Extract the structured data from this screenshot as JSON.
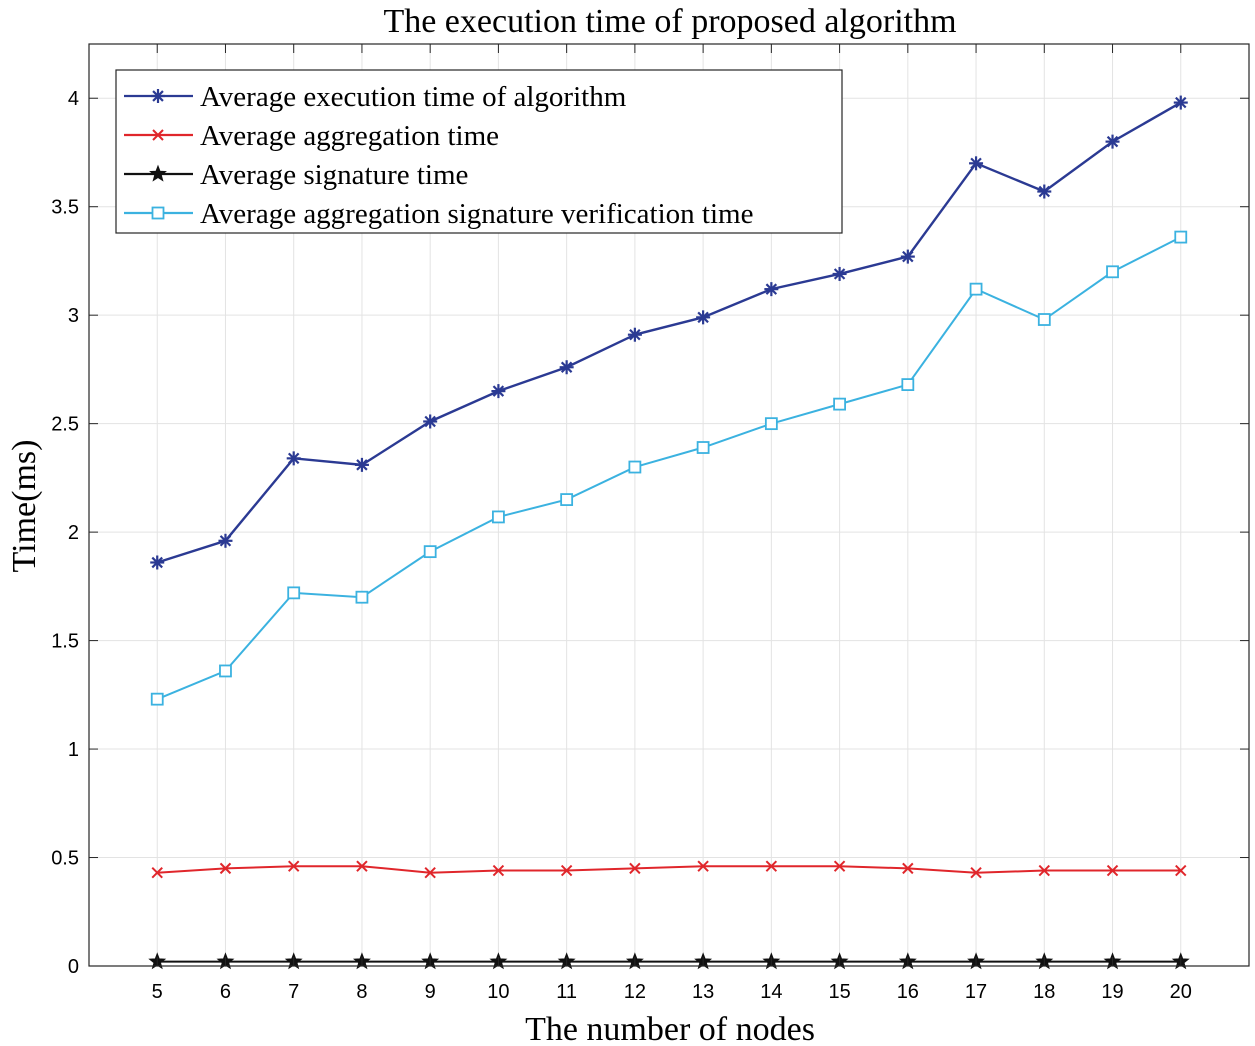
{
  "chart_data": {
    "type": "line",
    "title": "The execution time of proposed algorithm",
    "xlabel": "The number of nodes",
    "ylabel": "Time(ms)",
    "x": [
      5,
      6,
      7,
      8,
      9,
      10,
      11,
      12,
      13,
      14,
      15,
      16,
      17,
      18,
      19,
      20
    ],
    "xlim": [
      4,
      21
    ],
    "ylim": [
      0,
      4.25
    ],
    "yticks": [
      0,
      0.5,
      1,
      1.5,
      2,
      2.5,
      3,
      3.5,
      4
    ],
    "ytick_labels": [
      "0",
      "0.5",
      "1",
      "1.5",
      "2",
      "2.5",
      "3",
      "3.5",
      "4"
    ],
    "xtick_labels": [
      "5",
      "6",
      "7",
      "8",
      "9",
      "10",
      "11",
      "12",
      "13",
      "14",
      "15",
      "16",
      "17",
      "18",
      "19",
      "20"
    ],
    "grid": true,
    "legend_position": "top-left",
    "series": [
      {
        "name": "Average execution time of algorithm",
        "color": "#2b3a93",
        "marker": "asterisk",
        "values": [
          1.86,
          1.96,
          2.34,
          2.31,
          2.51,
          2.65,
          2.76,
          2.91,
          2.99,
          3.12,
          3.19,
          3.27,
          3.7,
          3.57,
          3.8,
          3.98
        ]
      },
      {
        "name": "Average aggregation time",
        "color": "#e0262b",
        "marker": "x",
        "values": [
          0.43,
          0.45,
          0.46,
          0.46,
          0.43,
          0.44,
          0.44,
          0.45,
          0.46,
          0.46,
          0.46,
          0.45,
          0.43,
          0.44,
          0.44,
          0.44
        ]
      },
      {
        "name": "Average signature time",
        "color": "#111111",
        "marker": "star",
        "values": [
          0.02,
          0.02,
          0.02,
          0.02,
          0.02,
          0.02,
          0.02,
          0.02,
          0.02,
          0.02,
          0.02,
          0.02,
          0.02,
          0.02,
          0.02,
          0.02
        ]
      },
      {
        "name": "Average aggregation signature verification time",
        "color": "#3bb2e0",
        "marker": "square",
        "values": [
          1.23,
          1.36,
          1.72,
          1.7,
          1.91,
          2.07,
          2.15,
          2.3,
          2.39,
          2.5,
          2.59,
          2.68,
          3.12,
          2.98,
          3.2,
          3.36
        ]
      }
    ]
  }
}
